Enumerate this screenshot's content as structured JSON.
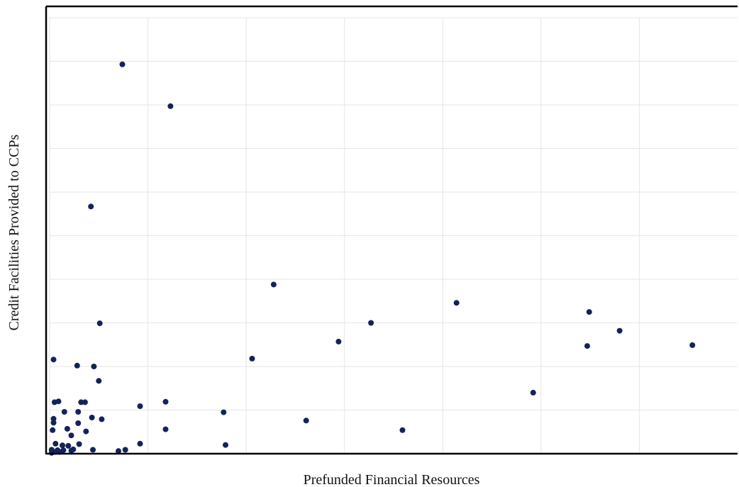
{
  "chart_data": {
    "type": "scatter",
    "title": "",
    "xlabel": "Prefunded Financial Resources",
    "ylabel": "Credit Facilities Provided to CCPs",
    "xlim": [
      0,
      70
    ],
    "ylim": [
      0,
      100
    ],
    "x_gridlines": [
      10,
      20,
      30,
      40,
      50,
      60
    ],
    "y_gridlines": [
      10,
      20,
      30,
      40,
      50,
      60,
      70,
      80,
      90
    ],
    "grid": true,
    "legend": "none",
    "marker_color": "#13235a",
    "frame_color": "#000000",
    "grid_color": "#e6e6e6",
    "series": [
      {
        "points": [
          [
            7.4,
            89.3
          ],
          [
            12.3,
            79.7
          ],
          [
            4.2,
            56.7
          ],
          [
            22.8,
            38.8
          ],
          [
            41.4,
            34.6
          ],
          [
            32.7,
            30.0
          ],
          [
            29.4,
            25.7
          ],
          [
            5.1,
            29.9
          ],
          [
            54.9,
            32.5
          ],
          [
            58.0,
            28.2
          ],
          [
            54.7,
            24.7
          ],
          [
            65.4,
            24.9
          ],
          [
            20.6,
            21.8
          ],
          [
            0.4,
            21.6
          ],
          [
            2.8,
            20.2
          ],
          [
            4.5,
            20.0
          ],
          [
            5.0,
            16.7
          ],
          [
            49.2,
            14.0
          ],
          [
            0.5,
            11.8
          ],
          [
            0.9,
            12.0
          ],
          [
            3.2,
            11.8
          ],
          [
            3.6,
            11.8
          ],
          [
            11.8,
            11.9
          ],
          [
            9.2,
            10.9
          ],
          [
            1.5,
            9.6
          ],
          [
            2.9,
            9.6
          ],
          [
            17.7,
            9.5
          ],
          [
            0.4,
            8.0
          ],
          [
            4.3,
            8.3
          ],
          [
            5.3,
            7.9
          ],
          [
            26.1,
            7.6
          ],
          [
            0.4,
            7.1
          ],
          [
            2.9,
            7.0
          ],
          [
            1.8,
            5.7
          ],
          [
            0.3,
            5.4
          ],
          [
            3.7,
            5.1
          ],
          [
            2.2,
            4.2
          ],
          [
            11.8,
            5.6
          ],
          [
            35.9,
            5.4
          ],
          [
            0.6,
            2.3
          ],
          [
            1.3,
            1.9
          ],
          [
            1.9,
            1.8
          ],
          [
            3.0,
            2.2
          ],
          [
            9.2,
            2.3
          ],
          [
            17.9,
            2.0
          ],
          [
            0.2,
            0.9
          ],
          [
            0.8,
            0.8
          ],
          [
            1.4,
            0.8
          ],
          [
            2.4,
            1.0
          ],
          [
            4.4,
            0.9
          ],
          [
            7.0,
            0.6
          ],
          [
            7.7,
            0.9
          ],
          [
            0.3,
            0.5
          ],
          [
            0.6,
            0.4
          ],
          [
            1.0,
            0.4
          ],
          [
            2.2,
            0.7
          ],
          [
            0.2,
            0.2
          ]
        ]
      }
    ]
  }
}
